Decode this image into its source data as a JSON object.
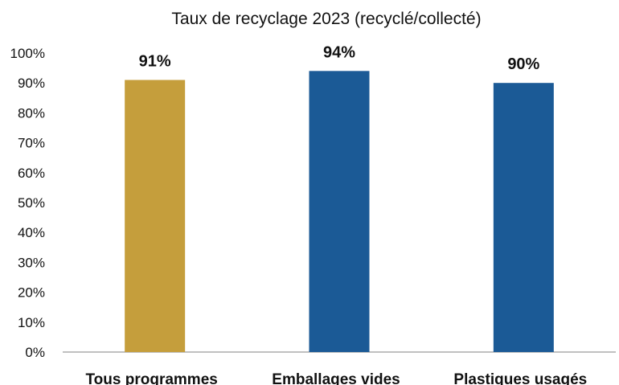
{
  "chart_data": {
    "type": "bar",
    "title": "Taux de recyclage 2023 (recyclé/collecté)",
    "categories": [
      "Tous programmes",
      "Emballages vides",
      "Plastiques usagés"
    ],
    "values": [
      91,
      94,
      90
    ],
    "data_labels": [
      "91%",
      "94%",
      "90%"
    ],
    "bar_colors": [
      "#C59E3C",
      "#1B5A96",
      "#1B5A96"
    ],
    "ylim": [
      0,
      100
    ],
    "yticks": [
      0,
      10,
      20,
      30,
      40,
      50,
      60,
      70,
      80,
      90,
      100
    ],
    "ytick_labels": [
      "0%",
      "10%",
      "20%",
      "30%",
      "40%",
      "50%",
      "60%",
      "70%",
      "80%",
      "90%",
      "100%"
    ],
    "grid": false,
    "legend": "none"
  }
}
